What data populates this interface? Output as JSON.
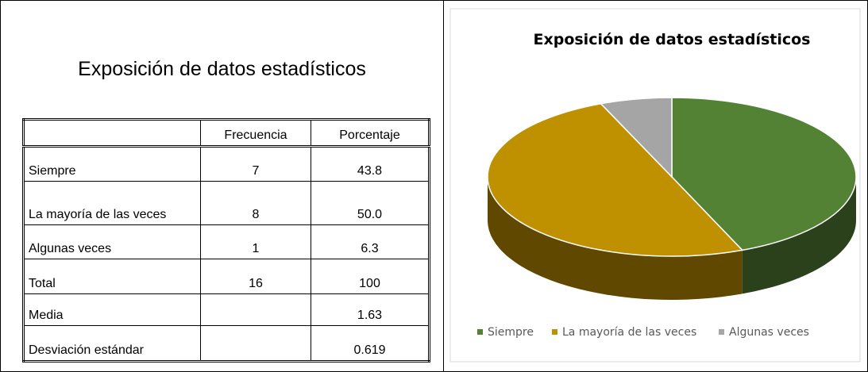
{
  "table": {
    "title": "Exposición de datos estadísticos",
    "columns": [
      "Frecuencia",
      "Porcentaje"
    ],
    "rows": [
      [
        "Siempre",
        "7",
        "43.8"
      ],
      [
        "La mayoría de las veces",
        "8",
        "50.0"
      ],
      [
        "Algunas veces",
        "1",
        "6.3"
      ],
      [
        "Total",
        "16",
        "100"
      ],
      [
        "Media",
        null,
        "1.63"
      ],
      [
        "Desviación estándar",
        null,
        "0.619"
      ]
    ]
  },
  "chart_data": {
    "type": "pie",
    "title": "Exposición de datos estadísticos",
    "categories": [
      "Siempre",
      "La mayoría de las veces",
      "Algunas veces"
    ],
    "values": [
      43.8,
      50,
      6.3
    ],
    "colors": [
      "#548235",
      "#bf9000",
      "#a5a5a5"
    ],
    "legend": "bottom"
  }
}
